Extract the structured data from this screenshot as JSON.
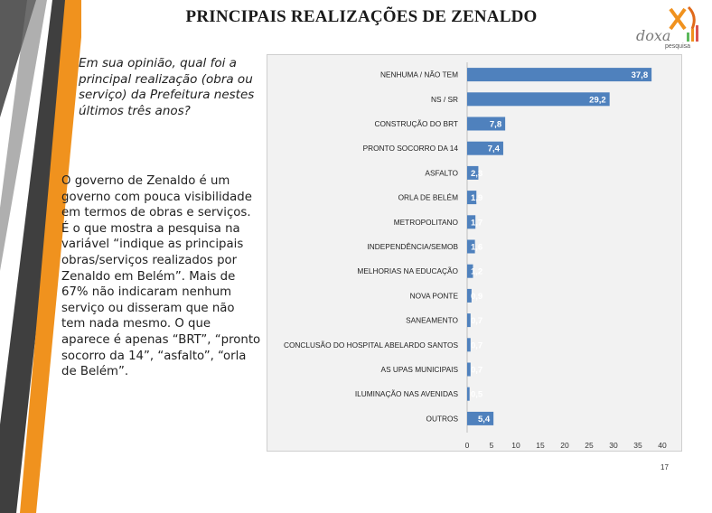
{
  "slide": {
    "title": "PRINCIPAIS REALIZAÇÕES DE ZENALDO",
    "question": "Em sua opinião, qual foi a principal realização (obra ou serviço) da Prefeitura nestes últimos três anos?",
    "body": "O governo de Zenaldo é um governo com pouca visibilidade em termos de obras e serviços. É o que mostra a pesquisa na variável “indique as principais obras/serviços realizados por Zenaldo em Belém”. Mais de 67% não indicaram nenhum serviço ou disseram que não tem nada mesmo. O que aparece é apenas “BRT”, “pronto socorro da 14”, “asfalto”, “orla de Belém”.",
    "page_number": "17"
  },
  "logo": {
    "name": "doxa",
    "sub": "pesquisa",
    "icon": "doxa-logo-icon"
  },
  "colors": {
    "bar": "#4f81bd",
    "bar_label": "#ffffff",
    "orange": "#f0921e",
    "dark_stripe": "#3f3f3f"
  },
  "chart_data": {
    "type": "bar",
    "orientation": "horizontal",
    "categories": [
      "NENHUMA / NÃO TEM",
      "NS / SR",
      "CONSTRUÇÃO DO BRT",
      "PRONTO SOCORRO DA 14",
      "ASFALTO",
      "ORLA DE BELÉM",
      "METROPOLITANO",
      "INDEPENDÊNCIA/SEMOB",
      "MELHORIAS NA EDUCAÇÃO",
      "NOVA PONTE",
      "SANEAMENTO",
      "CONCLUSÃO DO HOSPITAL ABELARDO SANTOS",
      "AS UPAS MUNICIPAIS",
      "ILUMINAÇÃO NAS AVENIDAS",
      "OUTROS"
    ],
    "values": [
      37.8,
      29.2,
      7.8,
      7.4,
      2.3,
      1.9,
      1.7,
      1.6,
      1.2,
      0.9,
      0.7,
      0.7,
      0.7,
      0.5,
      5.4
    ],
    "value_labels": [
      "37,8",
      "29,2",
      "7,8",
      "7,4",
      "2,3",
      "1,9",
      "1,7",
      "1,6",
      "1,2",
      "0,9",
      "0,7",
      "0,7",
      "0,7",
      "0,5",
      "5,4"
    ],
    "xticks": [
      "0",
      "5",
      "10",
      "15",
      "20",
      "25",
      "30",
      "35",
      "40"
    ],
    "xlim": [
      0,
      40
    ],
    "grid": false,
    "title": "",
    "xlabel": "",
    "ylabel": ""
  }
}
